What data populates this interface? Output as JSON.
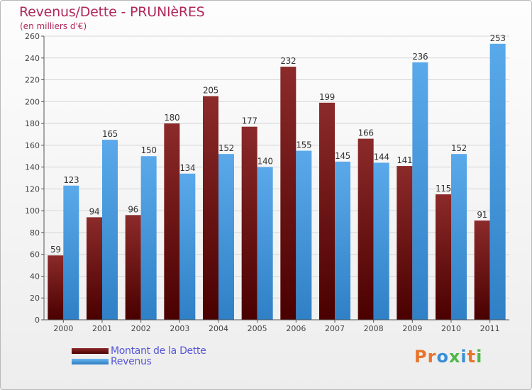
{
  "chart_data": {
    "type": "bar",
    "title": "Revenus/Dette - PRUNIèRES",
    "subtitle": "(en milliers d'€)",
    "categories": [
      "2000",
      "2001",
      "2002",
      "2003",
      "2004",
      "2005",
      "2006",
      "2007",
      "2008",
      "2009",
      "2010",
      "2011"
    ],
    "series": [
      {
        "name": "Montant de la Dette",
        "values": [
          59,
          94,
          96,
          180,
          205,
          177,
          232,
          199,
          166,
          141,
          115,
          91
        ],
        "color": "#7b1a1e"
      },
      {
        "name": "Revenus",
        "values": [
          123,
          165,
          150,
          134,
          152,
          140,
          155,
          145,
          144,
          236,
          152,
          253
        ],
        "color": "#4aa0e2"
      }
    ],
    "ylim": [
      0,
      260
    ],
    "yticks": [
      0,
      20,
      40,
      60,
      80,
      100,
      120,
      140,
      160,
      180,
      200,
      220,
      240,
      260
    ],
    "grid": true,
    "legend": "bottom-left"
  },
  "logo": {
    "text": "Proxiti",
    "colors": [
      "#e8742a",
      "#e8742a",
      "#3a8fd6",
      "#4db848",
      "#3a8fd6",
      "#e8742a",
      "#4db848"
    ]
  }
}
